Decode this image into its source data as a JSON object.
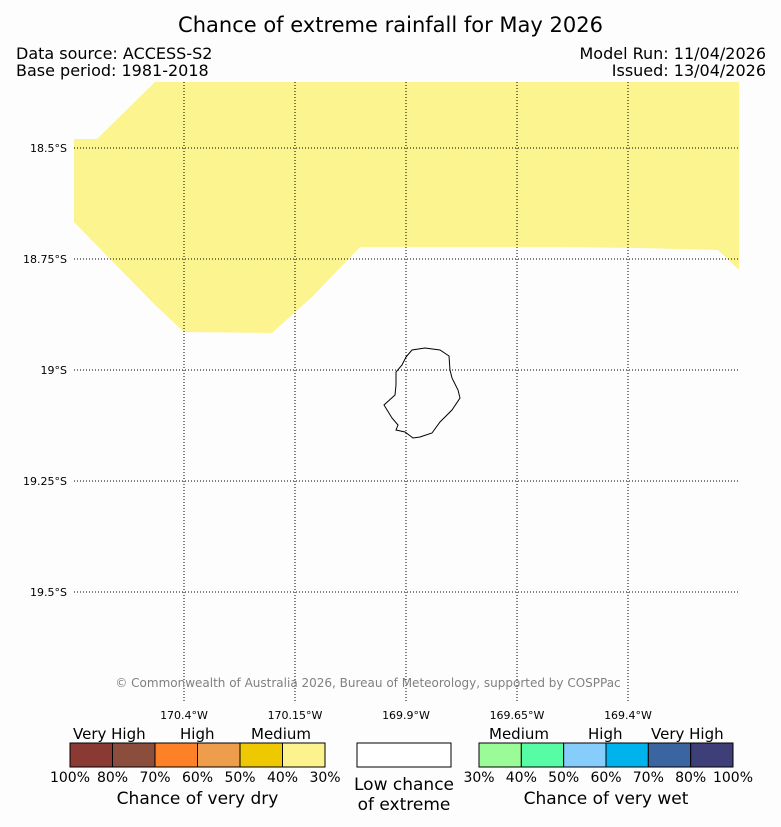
{
  "title": "Chance of extreme rainfall for May 2026",
  "data_source": "Data source: ACCESS-S2",
  "base_period": "Base period: 1981-2018",
  "model_run": "Model Run: 11/04/2026",
  "issued": "Issued: 13/04/2026",
  "lat_labels": [
    "18.5°S",
    "18.75°S",
    "19°S",
    "19.25°S",
    "19.5°S"
  ],
  "lon_labels": [
    "170.4°W",
    "170.15°W",
    "169.9°W",
    "169.65°W",
    "169.4°W"
  ],
  "copyright": "© Commonwealth of Australia 2026, Bureau of Meteorology, supported by COSPPac",
  "legend": {
    "dry": {
      "categories": [
        "Very High",
        "High",
        "Medium"
      ],
      "colors": [
        "#8b3a33",
        "#8c4e3c",
        "#fe8127",
        "#ed9d4b",
        "#eec800",
        "#fdf38e"
      ],
      "ticks": [
        "100%",
        "80%",
        "70%",
        "60%",
        "50%",
        "40%",
        "30%"
      ],
      "title": "Chance of very dry"
    },
    "low": {
      "line1": "Low chance",
      "line2": "of extreme",
      "color": "#ffffff"
    },
    "wet": {
      "categories": [
        "Medium",
        "High",
        "Very High"
      ],
      "colors": [
        "#9bfc97",
        "#56fda4",
        "#86cdfc",
        "#00b3ed",
        "#3a65a0",
        "#3e3e79"
      ],
      "ticks": [
        "30%",
        "40%",
        "50%",
        "60%",
        "70%",
        "80%",
        "100%"
      ],
      "title": "Chance of very wet"
    }
  },
  "map_colors": {
    "dry_30_40": "#fcf48f"
  }
}
